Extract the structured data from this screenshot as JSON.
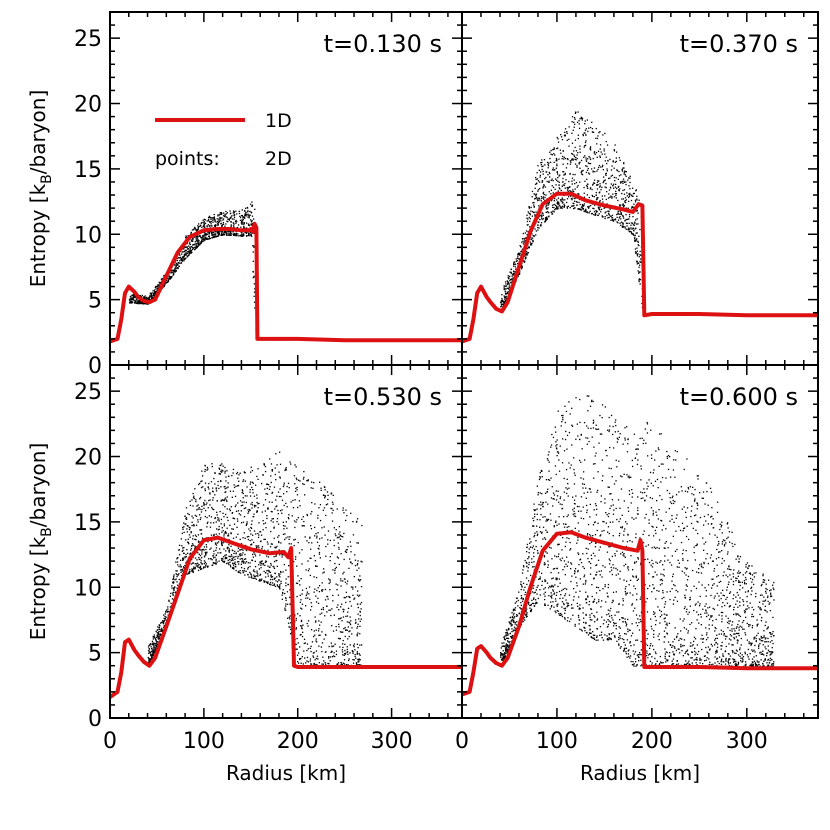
{
  "chart_data": [
    {
      "type": "line",
      "panel": "top-left",
      "title": "t=0.130 s",
      "xlabel": "",
      "ylabel": "Entropy [kB/baryon]",
      "xlim": [
        0,
        375
      ],
      "ylim": [
        0,
        27
      ],
      "xticks": [
        0,
        100,
        200,
        300
      ],
      "yticks": [
        0,
        5,
        10,
        15,
        20,
        25
      ],
      "show_x_tick_labels": false,
      "show_y_tick_labels": true,
      "legend": {
        "line_label": "1D",
        "points_label": "points:",
        "points_series": "2D",
        "placement": "upper-left"
      },
      "series": [
        {
          "name": "1D",
          "color": "#dd1111",
          "x": [
            0,
            8,
            12,
            16,
            20,
            26,
            30,
            36,
            42,
            48,
            60,
            72,
            85,
            100,
            115,
            128,
            140,
            148,
            150,
            152,
            154,
            156,
            157,
            160,
            180,
            200,
            250,
            300,
            375
          ],
          "y": [
            1.8,
            2.0,
            3.5,
            5.5,
            6.0,
            5.6,
            5.2,
            4.9,
            4.8,
            5.0,
            6.8,
            8.6,
            9.8,
            10.3,
            10.4,
            10.4,
            10.3,
            10.3,
            10.4,
            10.2,
            10.8,
            10.5,
            2.0,
            2.0,
            2.0,
            2.0,
            1.9,
            1.9,
            1.9
          ]
        },
        {
          "name": "2D",
          "style": "points",
          "color": "#000000",
          "x": [
            20,
            40,
            60,
            80,
            100,
            120,
            140,
            150,
            155
          ],
          "ymin": [
            4.8,
            4.7,
            6.3,
            8.2,
            9.6,
            10.0,
            9.9,
            9.9,
            2.0
          ],
          "ymax": [
            5.6,
            5.3,
            7.2,
            9.9,
            11.3,
            11.8,
            11.9,
            12.6,
            12.3
          ]
        }
      ]
    },
    {
      "type": "line",
      "panel": "top-right",
      "title": "t=0.370 s",
      "xlabel": "",
      "ylabel": "",
      "xlim": [
        0,
        375
      ],
      "ylim": [
        0,
        27
      ],
      "xticks": [
        0,
        100,
        200,
        300
      ],
      "yticks": [
        0,
        5,
        10,
        15,
        20,
        25
      ],
      "show_x_tick_labels": false,
      "show_y_tick_labels": false,
      "series": [
        {
          "name": "1D",
          "color": "#dd1111",
          "x": [
            0,
            8,
            12,
            16,
            20,
            26,
            30,
            36,
            42,
            48,
            60,
            72,
            85,
            100,
            115,
            130,
            150,
            170,
            180,
            186,
            190,
            192,
            200,
            250,
            300,
            375
          ],
          "y": [
            1.8,
            2.0,
            3.5,
            5.5,
            6.0,
            5.2,
            4.8,
            4.3,
            4.1,
            4.8,
            7.5,
            10.2,
            12.3,
            13.1,
            13.1,
            12.6,
            12.2,
            11.9,
            11.7,
            12.3,
            12.2,
            3.8,
            3.9,
            3.9,
            3.8,
            3.8
          ]
        },
        {
          "name": "2D",
          "style": "points",
          "color": "#000000",
          "x": [
            40,
            60,
            80,
            100,
            120,
            140,
            160,
            180,
            190
          ],
          "ymin": [
            4.0,
            7.0,
            10.5,
            12.0,
            12.0,
            11.5,
            11.0,
            10.0,
            4.0
          ],
          "ymax": [
            5.5,
            9.0,
            15.5,
            17.5,
            19.5,
            18.5,
            17.0,
            14.0,
            12.5
          ]
        }
      ]
    },
    {
      "type": "line",
      "panel": "bottom-left",
      "title": "t=0.530 s",
      "xlabel": "Radius [km]",
      "ylabel": "Entropy [kB/baryon]",
      "xlim": [
        0,
        375
      ],
      "ylim": [
        0,
        27
      ],
      "xticks": [
        0,
        100,
        200,
        300
      ],
      "yticks": [
        0,
        5,
        10,
        15,
        20,
        25
      ],
      "show_x_tick_labels": true,
      "show_y_tick_labels": true,
      "series": [
        {
          "name": "1D",
          "color": "#dd1111",
          "x": [
            0,
            8,
            12,
            16,
            20,
            26,
            30,
            36,
            42,
            48,
            60,
            72,
            85,
            100,
            115,
            130,
            150,
            170,
            185,
            190,
            193,
            196,
            200,
            250,
            300,
            375
          ],
          "y": [
            1.6,
            2.0,
            3.5,
            5.8,
            6.0,
            5.2,
            4.8,
            4.3,
            4.0,
            4.6,
            7.0,
            9.5,
            12.2,
            13.6,
            13.8,
            13.4,
            12.9,
            12.6,
            12.7,
            12.3,
            13.0,
            4.0,
            3.9,
            3.9,
            3.9,
            3.9
          ]
        },
        {
          "name": "2D",
          "style": "points",
          "color": "#000000",
          "x": [
            40,
            60,
            80,
            100,
            120,
            140,
            160,
            180,
            200,
            220,
            240,
            260,
            268
          ],
          "ymin": [
            4.0,
            7.0,
            11.0,
            11.5,
            12.0,
            11.0,
            10.5,
            10.0,
            4.0,
            4.0,
            4.0,
            4.0,
            4.0
          ],
          "ymax": [
            5.5,
            8.5,
            16.0,
            19.5,
            19.5,
            19.0,
            19.5,
            20.5,
            19.5,
            18.5,
            17.0,
            15.5,
            15.0
          ]
        }
      ]
    },
    {
      "type": "line",
      "panel": "bottom-right",
      "title": "t=0.600 s",
      "xlabel": "Radius [km]",
      "ylabel": "",
      "xlim": [
        0,
        375
      ],
      "ylim": [
        0,
        27
      ],
      "xticks": [
        0,
        100,
        200,
        300
      ],
      "yticks": [
        0,
        5,
        10,
        15,
        20,
        25
      ],
      "show_x_tick_labels": true,
      "show_y_tick_labels": false,
      "series": [
        {
          "name": "1D",
          "color": "#dd1111",
          "x": [
            0,
            8,
            12,
            16,
            20,
            26,
            30,
            36,
            42,
            48,
            60,
            72,
            85,
            100,
            115,
            130,
            150,
            170,
            185,
            188,
            190,
            192,
            200,
            250,
            300,
            375
          ],
          "y": [
            1.8,
            2.0,
            3.5,
            5.3,
            5.5,
            5.0,
            4.6,
            4.2,
            4.0,
            4.6,
            7.0,
            10.0,
            12.8,
            14.1,
            14.2,
            13.8,
            13.4,
            13.0,
            12.8,
            13.6,
            12.8,
            3.9,
            3.9,
            3.9,
            3.8,
            3.8
          ]
        },
        {
          "name": "2D",
          "style": "points",
          "color": "#000000",
          "x": [
            40,
            60,
            80,
            100,
            120,
            140,
            160,
            180,
            200,
            220,
            240,
            260,
            280,
            300,
            320,
            328
          ],
          "ymin": [
            4.0,
            7.0,
            9.0,
            8.0,
            7.0,
            6.0,
            6.0,
            4.0,
            4.0,
            4.0,
            4.0,
            4.0,
            4.0,
            4.0,
            4.0,
            4.0
          ],
          "ymax": [
            5.5,
            10.0,
            18.5,
            23.5,
            25.0,
            24.5,
            23.5,
            22.0,
            23.0,
            21.5,
            19.5,
            18.0,
            15.0,
            12.0,
            11.0,
            10.5
          ]
        }
      ]
    }
  ]
}
